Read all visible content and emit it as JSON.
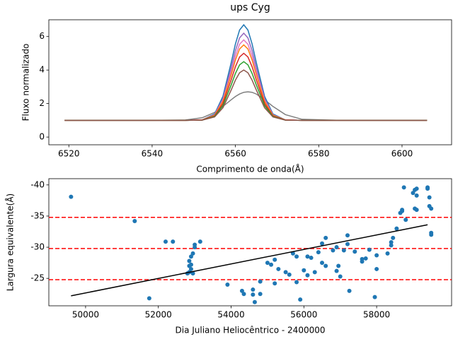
{
  "chart_data": [
    {
      "type": "line",
      "title": "ups Cyg",
      "xlabel": "Comprimento de onda(Å)",
      "ylabel": "Fluxo normalizado",
      "x": [
        6519,
        6530,
        6540,
        6548,
        6552,
        6555,
        6557,
        6559,
        6560,
        6561,
        6562,
        6563,
        6564,
        6565,
        6567,
        6569,
        6572,
        6576,
        6585,
        6595,
        6606
      ],
      "series": [
        {
          "color": "#7f7f7f",
          "values": [
            1,
            1,
            1,
            1.02,
            1.15,
            1.47,
            1.83,
            2.23,
            2.42,
            2.57,
            2.67,
            2.7,
            2.67,
            2.57,
            2.23,
            1.83,
            1.34,
            1.06,
            1,
            1,
            1
          ]
        },
        {
          "color": "#1f77b4",
          "values": [
            1,
            1,
            1,
            1,
            1.02,
            1.38,
            2.43,
            4.46,
            5.56,
            6.39,
            6.7,
            6.39,
            5.56,
            4.46,
            2.43,
            1.38,
            1.02,
            1,
            1,
            1,
            1
          ]
        },
        {
          "color": "#9467bd",
          "values": [
            1,
            1,
            1,
            1,
            1.02,
            1.34,
            2.3,
            4.16,
            5.16,
            5.92,
            6.2,
            5.92,
            5.16,
            4.16,
            2.3,
            1.34,
            1.02,
            1,
            1,
            1,
            1
          ]
        },
        {
          "color": "#e377c2",
          "values": [
            1,
            1,
            1,
            1,
            1.02,
            1.32,
            2.2,
            3.91,
            4.84,
            5.54,
            5.8,
            5.54,
            4.84,
            3.91,
            2.2,
            1.32,
            1.02,
            1,
            1,
            1,
            1
          ]
        },
        {
          "color": "#ff7f0e",
          "values": [
            1,
            1,
            1,
            1,
            1.02,
            1.3,
            2.13,
            3.73,
            4.6,
            5.26,
            5.5,
            5.26,
            4.6,
            3.73,
            2.13,
            1.3,
            1.02,
            1,
            1,
            1,
            1
          ]
        },
        {
          "color": "#d62728",
          "values": [
            1,
            1,
            1,
            1,
            1.02,
            1.26,
            2.0,
            3.43,
            4.2,
            4.78,
            5.0,
            4.78,
            4.2,
            3.43,
            2.0,
            1.26,
            1.02,
            1,
            1,
            1,
            1
          ]
        },
        {
          "color": "#2ca02c",
          "values": [
            1,
            1,
            1,
            1,
            1.01,
            1.23,
            1.88,
            3.12,
            3.8,
            4.31,
            4.5,
            4.31,
            3.8,
            3.12,
            1.88,
            1.23,
            1.01,
            1,
            1,
            1,
            1
          ]
        },
        {
          "color": "#8c564b",
          "values": [
            1,
            1,
            1,
            1,
            1.01,
            1.2,
            1.75,
            2.82,
            3.4,
            3.84,
            4.0,
            3.84,
            3.4,
            2.82,
            1.75,
            1.2,
            1.01,
            1,
            1,
            1,
            1
          ]
        }
      ],
      "xlim": [
        6515.2,
        6611.9
      ],
      "xticks": [
        6520,
        6540,
        6560,
        6580,
        6600
      ],
      "ylim": [
        -0.46,
        7.0
      ],
      "yticks": [
        0,
        2,
        4,
        6
      ]
    },
    {
      "type": "scatter",
      "xlabel": "Dia Juliano Heliocêntrico - 2400000",
      "ylabel": "Largura equivalente(Å)",
      "color": "#1f77b4",
      "x": [
        49600,
        51350,
        51750,
        52200,
        52400,
        52800,
        52850,
        52900,
        52850,
        52900,
        52950,
        52900,
        52850,
        53000,
        53000,
        53150,
        52950,
        53900,
        54300,
        54350,
        54600,
        54600,
        54650,
        54800,
        54800,
        55000,
        55100,
        55200,
        55300,
        55200,
        55500,
        55600,
        55700,
        55800,
        55800,
        55900,
        56000,
        56100,
        56100,
        56200,
        56300,
        56400,
        56500,
        56500,
        56600,
        56600,
        56800,
        56900,
        56950,
        56900,
        57000,
        57100,
        57200,
        57200,
        57250,
        57400,
        57600,
        57600,
        57700,
        57800,
        57950,
        58000,
        58000,
        58300,
        58400,
        58400,
        58450,
        58550,
        58650,
        58700,
        58700,
        58750,
        58800,
        59000,
        59050,
        59100,
        59100,
        59050,
        59100,
        59400,
        59400,
        59450,
        59450,
        59500,
        59500,
        59500
      ],
      "y": [
        -38.1,
        -34.2,
        -21.8,
        -30.9,
        -30.9,
        -25.8,
        -26.0,
        -27.2,
        -27.8,
        -28.5,
        -29.0,
        -26.5,
        -27.0,
        -30.0,
        -30.4,
        -30.9,
        -25.8,
        -24.0,
        -23.0,
        -22.5,
        -23.2,
        -22.4,
        -21.2,
        -24.5,
        -22.5,
        -27.5,
        -27.2,
        -28.0,
        -26.5,
        -24.2,
        -26.0,
        -25.6,
        -29.0,
        -28.5,
        -24.4,
        -21.6,
        -26.3,
        -25.5,
        -28.5,
        -28.3,
        -26.0,
        -29.2,
        -27.5,
        -30.6,
        -31.5,
        -27.0,
        -29.5,
        -26.2,
        -27.0,
        -30.0,
        -25.3,
        -29.5,
        -31.9,
        -30.5,
        -23.0,
        -29.3,
        -28.1,
        -27.7,
        -28.2,
        -29.6,
        -22.0,
        -28.7,
        -26.5,
        -29.0,
        -30.3,
        -30.8,
        -31.5,
        -33.0,
        -35.5,
        -35.8,
        -36.0,
        -39.6,
        -34.4,
        -38.7,
        -39.2,
        -39.4,
        -38.3,
        -36.2,
        -36.0,
        -39.6,
        -39.4,
        -38.0,
        -36.6,
        -36.2,
        -32.3,
        -32.0
      ],
      "hlines": {
        "values": [
          -34.8,
          -29.8,
          -24.8
        ],
        "color": "#ff0000"
      },
      "fit": {
        "x": [
          49600,
          59400
        ],
        "y": [
          -22.2,
          -33.6
        ],
        "color": "#000000"
      },
      "xlim": [
        48990,
        60060
      ],
      "xticks": [
        50000,
        52000,
        54000,
        56000,
        58000
      ],
      "ylim": [
        -20.6,
        -41.0
      ],
      "yticks": [
        -40,
        -35,
        -30,
        -25
      ]
    }
  ]
}
